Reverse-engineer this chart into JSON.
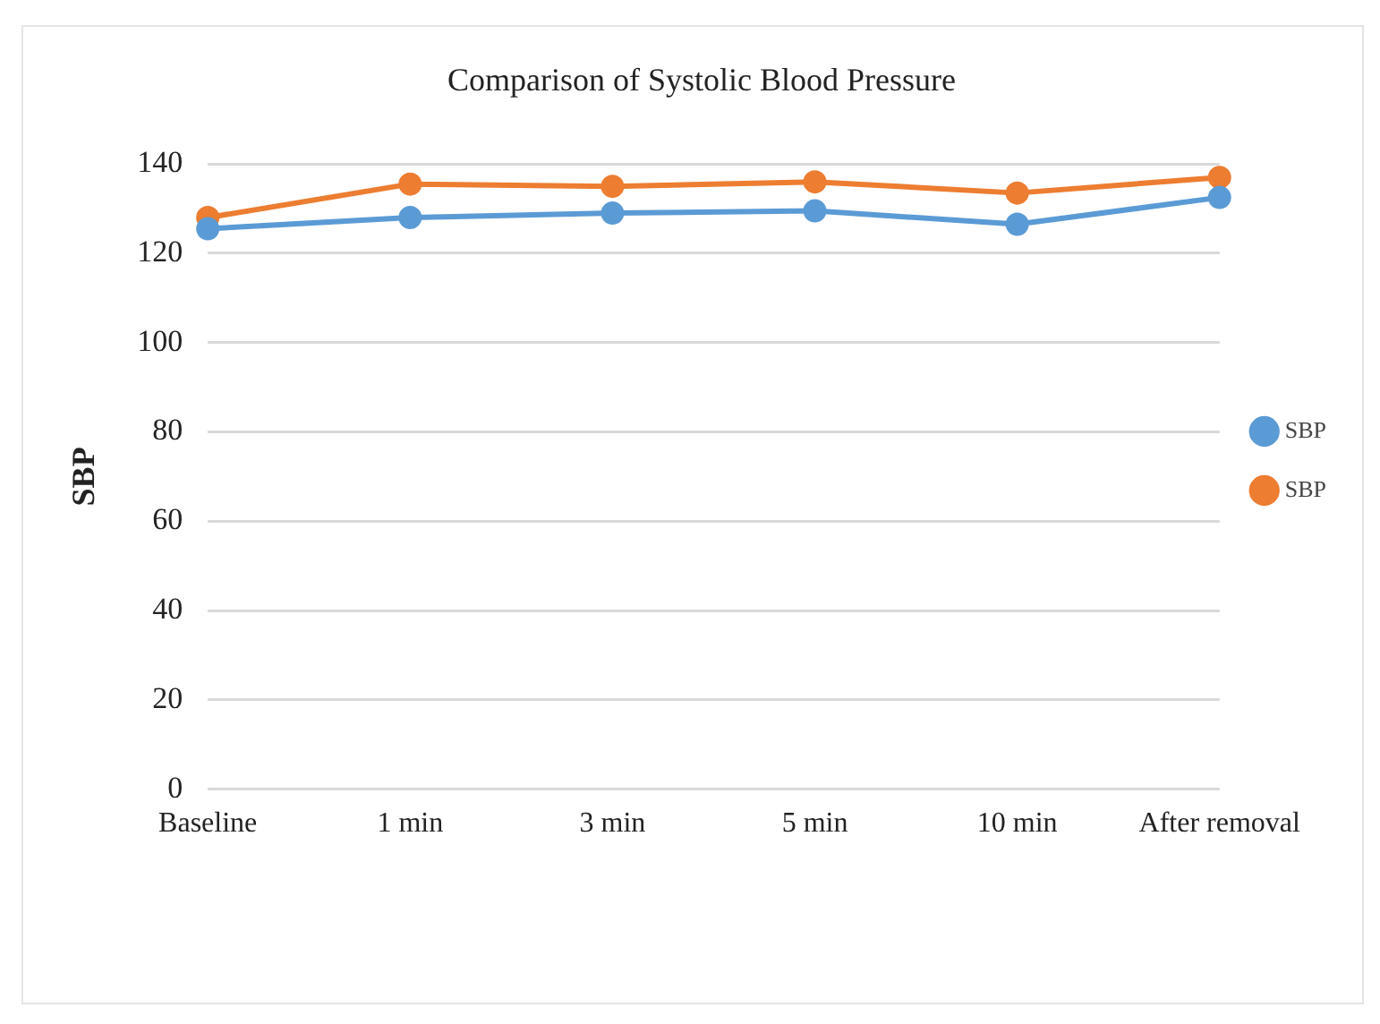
{
  "chart_data": {
    "type": "line",
    "title": "Comparison of Systolic Blood Pressure",
    "ylabel": "SBP",
    "categories": [
      "Baseline",
      "1 min",
      "3 min",
      "5 min",
      "10 min",
      "After removal"
    ],
    "series": [
      {
        "name": "SBP",
        "color": "#5b9bd5",
        "values": [
          125.5,
          128,
          129,
          129.5,
          126.5,
          132.5
        ]
      },
      {
        "name": "SBP",
        "color": "#ed7d31",
        "values": [
          128,
          135.5,
          135,
          136,
          133.5,
          137
        ]
      }
    ],
    "ylim": [
      0,
      140
    ],
    "yticks": [
      0,
      20,
      40,
      60,
      80,
      100,
      120,
      140
    ],
    "grid": "y",
    "legend": "right",
    "marker": "circle",
    "line_style": "solid"
  }
}
